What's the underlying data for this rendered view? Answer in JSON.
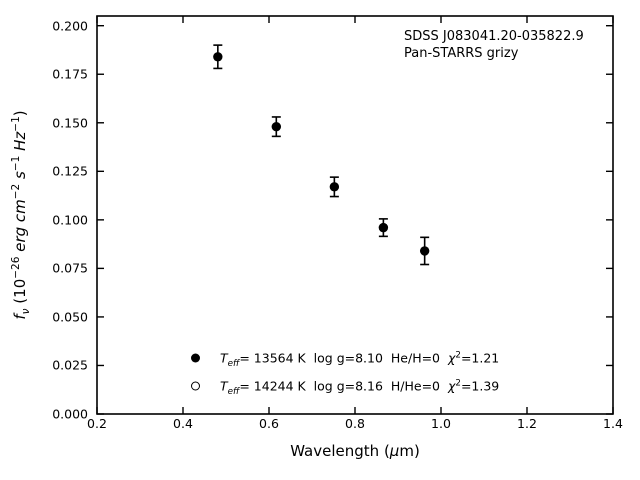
{
  "chart_data": {
    "type": "scatter",
    "title": "",
    "annotation": [
      "SDSS J083041.20-035822.9",
      "Pan-STARRS grizy"
    ],
    "xlabel": "Wavelength (μm)",
    "xlabel_parts": [
      {
        "t": "Wavelength ("
      },
      {
        "t": "μ",
        "i": true
      },
      {
        "t": "m)"
      }
    ],
    "ylabel": "f_ν (10^−26 erg cm^−2 s^−1 Hz^−1)",
    "ylabel_parts": [
      {
        "t": "f",
        "i": true
      },
      {
        "t": "ν",
        "sub": true,
        "i": true
      },
      {
        "t": " (10"
      },
      {
        "t": "−26",
        "sup": true
      },
      {
        "t": " "
      },
      {
        "t": "erg cm",
        "i": true
      },
      {
        "t": "−2",
        "sup": true
      },
      {
        "t": " "
      },
      {
        "t": "s",
        "i": true
      },
      {
        "t": "−1",
        "sup": true
      },
      {
        "t": " "
      },
      {
        "t": "Hz",
        "i": true
      },
      {
        "t": "−1",
        "sup": true
      },
      {
        "t": ")"
      }
    ],
    "xlim": [
      0.2,
      1.4
    ],
    "ylim": [
      0.0,
      0.205
    ],
    "grid": false,
    "legend_position": "lower center",
    "xticks": [
      {
        "v": 0.2,
        "label": "0.2"
      },
      {
        "v": 0.4,
        "label": "0.4"
      },
      {
        "v": 0.6,
        "label": "0.6"
      },
      {
        "v": 0.8,
        "label": "0.8"
      },
      {
        "v": 1.0,
        "label": "1.0"
      },
      {
        "v": 1.2,
        "label": "1.2"
      },
      {
        "v": 1.4,
        "label": "1.4"
      }
    ],
    "yticks": [
      {
        "v": 0.0,
        "label": "0.000"
      },
      {
        "v": 0.025,
        "label": "0.025"
      },
      {
        "v": 0.05,
        "label": "0.050"
      },
      {
        "v": 0.075,
        "label": "0.075"
      },
      {
        "v": 0.1,
        "label": "0.100"
      },
      {
        "v": 0.125,
        "label": "0.125"
      },
      {
        "v": 0.15,
        "label": "0.150"
      },
      {
        "v": 0.175,
        "label": "0.175"
      },
      {
        "v": 0.2,
        "label": "0.200"
      }
    ],
    "series": [
      {
        "name": "Pan-STARRS grizy photometry",
        "marker": "filled-circle",
        "color": "#000000",
        "points": [
          {
            "x": 0.481,
            "y": 0.184,
            "yerr": 0.006
          },
          {
            "x": 0.617,
            "y": 0.148,
            "yerr": 0.005
          },
          {
            "x": 0.752,
            "y": 0.117,
            "yerr": 0.005
          },
          {
            "x": 0.866,
            "y": 0.096,
            "yerr": 0.0045
          },
          {
            "x": 0.962,
            "y": 0.084,
            "yerr": 0.007
          }
        ]
      }
    ],
    "legend": [
      {
        "marker": "filled-circle",
        "text": "T_eff= 13564 K  log g=8.10  He/H=0  χ^2=1.21",
        "parts": [
          {
            "t": "T",
            "i": true
          },
          {
            "t": "eff",
            "sub": true,
            "i": true
          },
          {
            "t": "= 13564 K  log g=8.10  He/H=0  "
          },
          {
            "t": "χ",
            "i": true
          },
          {
            "t": "2",
            "sup": true
          },
          {
            "t": "=1.21"
          }
        ]
      },
      {
        "marker": "open-circle",
        "text": "T_eff= 14244 K  log g=8.16  H/He=0  χ^2=1.39",
        "parts": [
          {
            "t": "T",
            "i": true
          },
          {
            "t": "eff",
            "sub": true,
            "i": true
          },
          {
            "t": "= 14244 K  log g=8.16  H/He=0  "
          },
          {
            "t": "χ",
            "i": true
          },
          {
            "t": "2",
            "sup": true
          },
          {
            "t": "=1.39"
          }
        ]
      }
    ],
    "colors": {
      "foreground": "#000000",
      "background": "#ffffff"
    }
  }
}
